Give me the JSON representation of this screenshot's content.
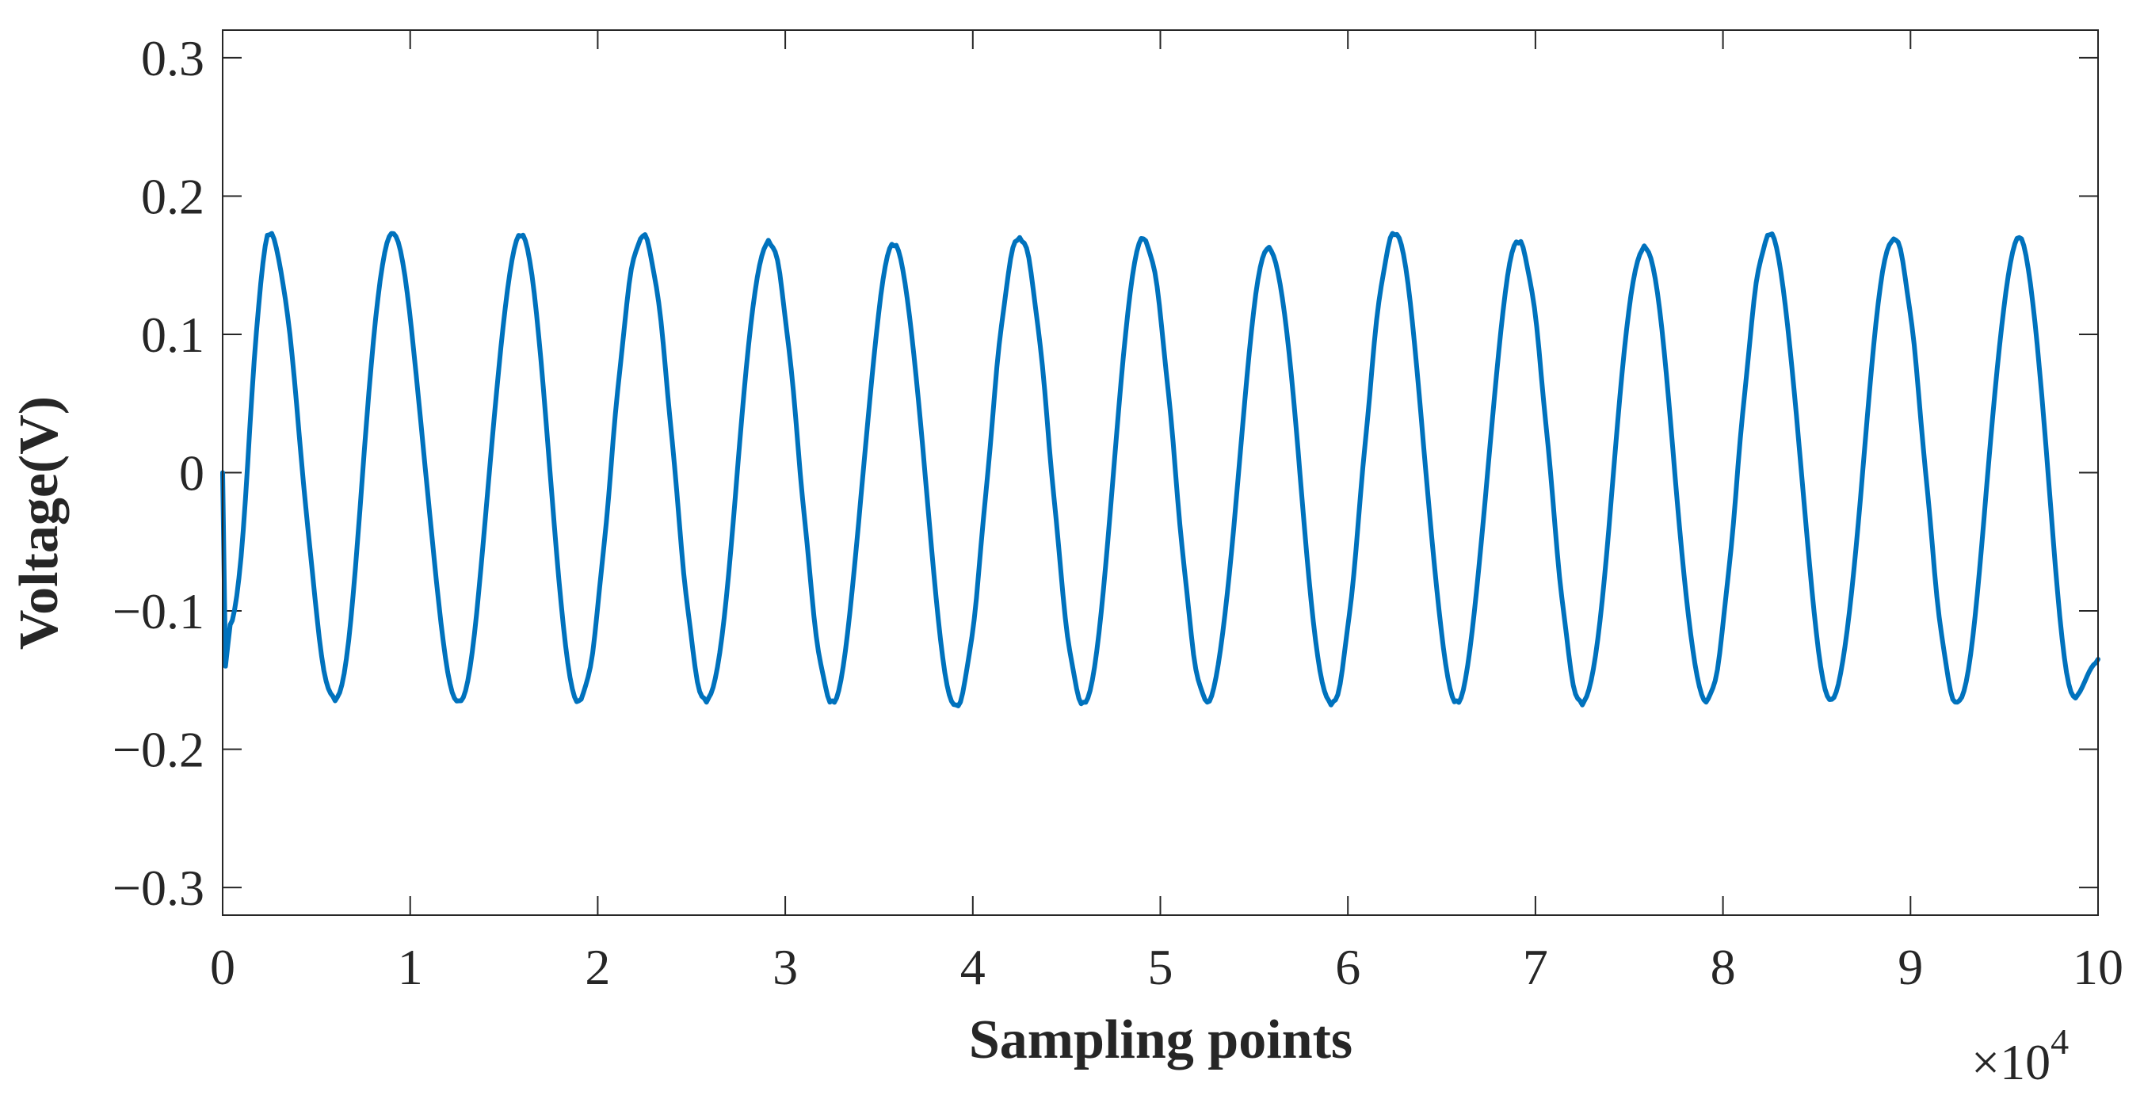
{
  "chart_data": {
    "type": "line",
    "xlabel": "Sampling points",
    "ylabel": "Voltage(V)",
    "x_exponent_label": "×10",
    "x_exponent_power": "4",
    "x_unit_scale": 10000,
    "xlim": [
      0,
      100000
    ],
    "ylim": [
      -0.32,
      0.32
    ],
    "x_ticks": [
      0,
      10000,
      20000,
      30000,
      40000,
      50000,
      60000,
      70000,
      80000,
      90000,
      100000
    ],
    "x_tick_labels": [
      "0",
      "1",
      "2",
      "3",
      "4",
      "5",
      "6",
      "7",
      "8",
      "9",
      "10"
    ],
    "y_ticks": [
      0.3,
      0.2,
      0.1,
      0,
      -0.1,
      -0.2,
      -0.3
    ],
    "y_tick_labels": [
      "0.3",
      "0.2",
      "0.1",
      "0",
      "−0.1",
      "−0.2",
      "−0.3"
    ],
    "grid": false,
    "series": [
      {
        "color": "#0072BD",
        "x": [
          0,
          150,
          400,
          2500,
          6000,
          9000,
          12600,
          15900,
          19000,
          22400,
          25800,
          29100,
          32500,
          35800,
          39100,
          42500,
          45900,
          49100,
          52500,
          55800,
          59100,
          62500,
          65800,
          69100,
          72500,
          75800,
          79100,
          82500,
          85800,
          89100,
          92500,
          95800,
          98800,
          100000
        ],
        "y": [
          0,
          -0.14,
          -0.11,
          0.172,
          -0.165,
          0.173,
          -0.165,
          0.171,
          -0.165,
          0.171,
          -0.166,
          0.168,
          -0.165,
          0.164,
          -0.168,
          0.17,
          -0.166,
          0.169,
          -0.166,
          0.163,
          -0.168,
          0.172,
          -0.165,
          0.166,
          -0.168,
          0.164,
          -0.166,
          0.172,
          -0.164,
          0.169,
          -0.166,
          0.17,
          -0.163,
          -0.135
        ]
      }
    ]
  }
}
